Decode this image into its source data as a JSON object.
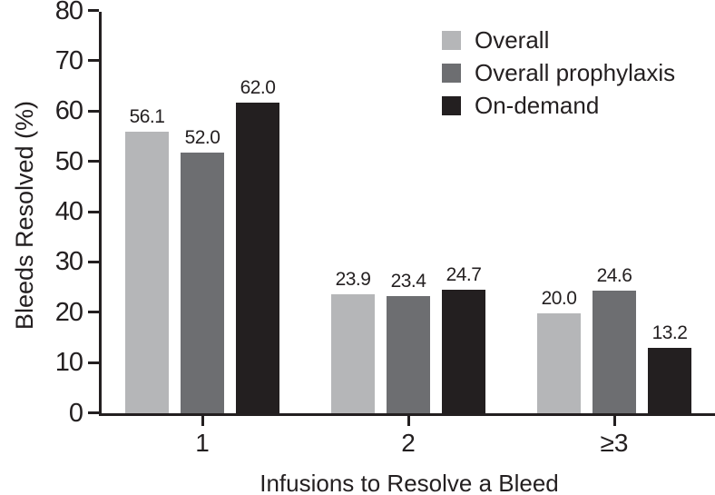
{
  "chart_data": {
    "type": "bar",
    "title": "",
    "xlabel": "Infusions to Resolve a Bleed",
    "ylabel": "Bleeds Resolved (%)",
    "categories": [
      "1",
      "2",
      "≥3"
    ],
    "series": [
      {
        "name": "Overall",
        "color": "#b5b6b8",
        "values": [
          56.1,
          23.9,
          20.0
        ],
        "labels": [
          "56.1",
          "23.9",
          "20.0"
        ]
      },
      {
        "name": "Overall prophylaxis",
        "color": "#6d6e71",
        "values": [
          52.0,
          23.4,
          24.6
        ],
        "labels": [
          "52.0",
          "23.4",
          "24.6"
        ]
      },
      {
        "name": "On-demand",
        "color": "#231f20",
        "values": [
          62.0,
          24.7,
          13.2
        ],
        "labels": [
          "62.0",
          "24.7",
          "13.2"
        ]
      }
    ],
    "ylim": [
      0,
      80
    ],
    "yticks": [
      0,
      10,
      20,
      30,
      40,
      50,
      60,
      70,
      80
    ],
    "ytick_labels": [
      "0",
      "10",
      "20",
      "30",
      "40",
      "50",
      "60",
      "70",
      "80"
    ],
    "grid": false,
    "legend_position": "top-right",
    "axis_color": "#231f20",
    "text_color": "#231f20",
    "background_color": "#ffffff"
  }
}
